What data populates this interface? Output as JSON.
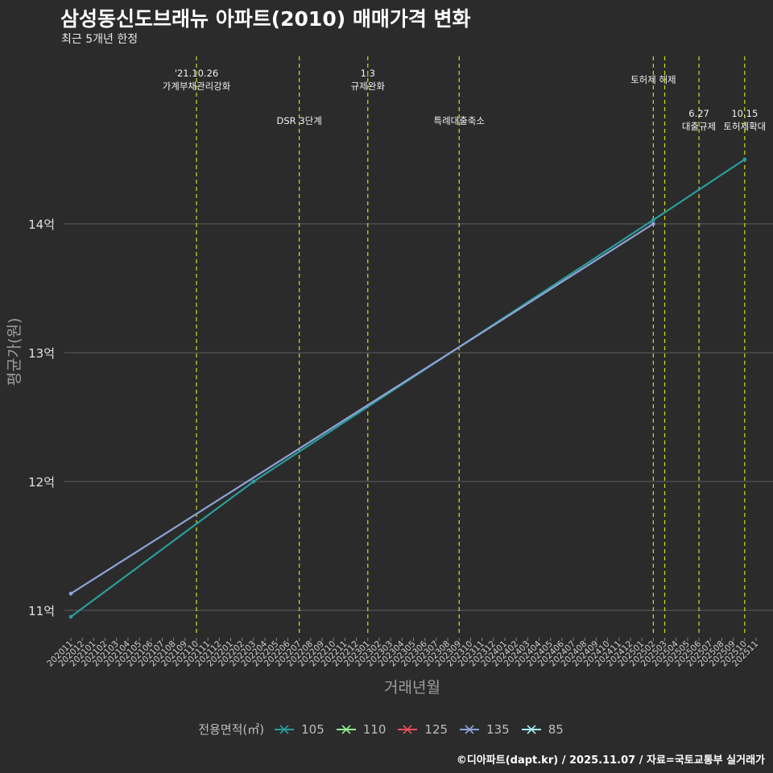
{
  "chart_data": {
    "type": "line",
    "title": "삼성동신도브래뉴 아파트(2010) 매매가격 변화",
    "subtitle": "최근 5개년 한정",
    "xlabel": "거래년월",
    "ylabel": "평균가(원)",
    "caption": "©디아파트(dapt.kr) / 2025.11.07 / 자료=국토교통부 실거래가",
    "x_categories": [
      "202011",
      "202012",
      "202101",
      "202102",
      "202103",
      "202104",
      "202105",
      "202106",
      "202107",
      "202108",
      "202109",
      "202110",
      "202111",
      "202112",
      "202201",
      "202202",
      "202203",
      "202204",
      "202205",
      "202206",
      "202207",
      "202208",
      "202209",
      "202210",
      "202211",
      "202212",
      "202301",
      "202302",
      "202303",
      "202304",
      "202305",
      "202306",
      "202307",
      "202308",
      "202309",
      "202310",
      "202311",
      "202312",
      "202401",
      "202402",
      "202403",
      "202404",
      "202405",
      "202406",
      "202407",
      "202408",
      "202409",
      "202410",
      "202411",
      "202412",
      "202501",
      "202502",
      "202503",
      "202504",
      "202505",
      "202506",
      "202507",
      "202508",
      "202509",
      "202510",
      "202511"
    ],
    "y_range": [
      1080000000,
      1535000000
    ],
    "y_ticks": [
      {
        "value": 1100000000,
        "label": "11억"
      },
      {
        "value": 1200000000,
        "label": "12억"
      },
      {
        "value": 1300000000,
        "label": "13억"
      },
      {
        "value": 1400000000,
        "label": "14억"
      }
    ],
    "legend_title": "전용면적(㎡)",
    "legend": [
      {
        "name": "105",
        "color": "#2a9d9b"
      },
      {
        "name": "110",
        "color": "#90ee90"
      },
      {
        "name": "125",
        "color": "#e8505b"
      },
      {
        "name": "135",
        "color": "#8ea3d6"
      },
      {
        "name": "85",
        "color": "#a8ecf0"
      }
    ],
    "series": [
      {
        "name": "105",
        "color": "#2a9d9b",
        "points": [
          {
            "x": "202011",
            "y": 1095000000
          },
          {
            "x": "202203",
            "y": 1200000000
          },
          {
            "x": "202502",
            "y": 1403000000
          },
          {
            "x": "202510",
            "y": 1450000000
          }
        ]
      },
      {
        "name": "135",
        "color": "#8ea3d6",
        "points": [
          {
            "x": "202011",
            "y": 1113000000
          },
          {
            "x": "202502",
            "y": 1400000000
          }
        ]
      }
    ],
    "events": [
      {
        "x": "202110",
        "lines": [
          "'21.10.26",
          "가계부채관리강화"
        ],
        "row": "top"
      },
      {
        "x": "202207",
        "lines": [
          "DSR 3단계"
        ],
        "row": "low"
      },
      {
        "x": "202301",
        "lines": [
          "1.3",
          "규제완화"
        ],
        "row": "top"
      },
      {
        "x": "202309",
        "lines": [
          "특례대출축소"
        ],
        "row": "low"
      },
      {
        "x": "202502",
        "lines": [
          "토허제 해제"
        ],
        "row": "mid"
      },
      {
        "x": "202503",
        "lines": [],
        "row": "none"
      },
      {
        "x": "202506",
        "lines": [
          "6.27",
          "대출규제"
        ],
        "row": "low2"
      },
      {
        "x": "202510",
        "lines": [
          "10.15",
          "토허제확대"
        ],
        "row": "low2"
      }
    ]
  }
}
